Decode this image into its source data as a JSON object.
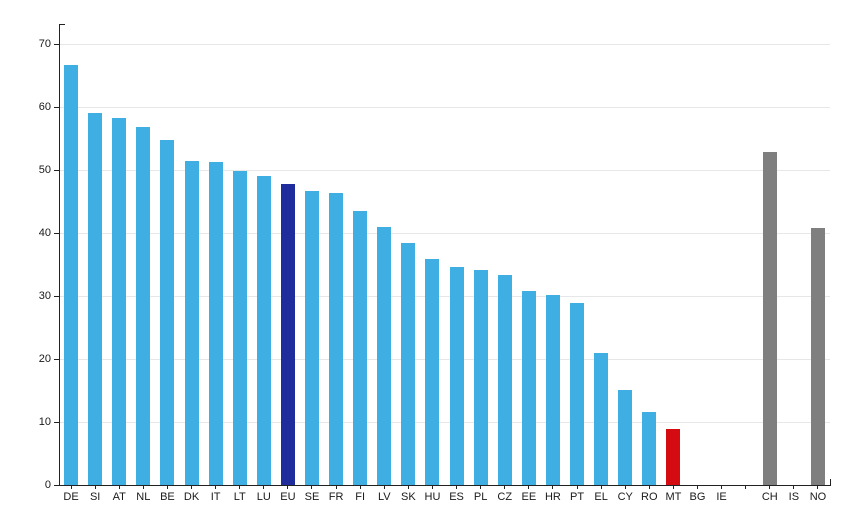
{
  "chart_data": {
    "type": "bar",
    "title": "",
    "xlabel": "",
    "ylabel": "",
    "categories": [
      "DE",
      "SI",
      "AT",
      "NL",
      "BE",
      "DK",
      "IT",
      "LT",
      "LU",
      "EU",
      "SE",
      "FR",
      "FI",
      "LV",
      "SK",
      "HU",
      "ES",
      "PL",
      "CZ",
      "EE",
      "HR",
      "PT",
      "EL",
      "CY",
      "RO",
      "MT",
      "BG",
      "IE",
      "",
      "CH",
      "IS",
      "NO"
    ],
    "values": [
      66.7,
      59.1,
      58.2,
      56.9,
      54.7,
      51.5,
      51.3,
      49.8,
      49.0,
      47.8,
      46.6,
      46.3,
      43.5,
      41.0,
      38.4,
      35.9,
      34.6,
      34.2,
      33.4,
      30.8,
      30.2,
      28.9,
      21.0,
      15.1,
      11.6,
      8.9,
      null,
      null,
      null,
      52.9,
      null,
      40.8
    ],
    "bar_color_roles": [
      "default",
      "default",
      "default",
      "default",
      "default",
      "default",
      "default",
      "default",
      "default",
      "eu_aggregate",
      "default",
      "default",
      "default",
      "default",
      "default",
      "default",
      "default",
      "default",
      "default",
      "default",
      "default",
      "default",
      "default",
      "default",
      "default",
      "highlight",
      "default",
      "default",
      "none",
      "non_eu",
      "non_eu",
      "non_eu"
    ],
    "palette": {
      "default": "#3EAEE3",
      "eu_aggregate": "#1E2D9B",
      "highlight": "#D40B10",
      "non_eu": "#7F7F7F"
    },
    "colors": {
      "grid": "#E7E7E7",
      "axis": "#222222",
      "tick_label": "#1A1A1A"
    },
    "yticks": [
      0,
      10,
      20,
      30,
      40,
      50,
      60,
      70
    ],
    "ylim": [
      0,
      73
    ],
    "grid": "horizontal",
    "legend": "none"
  }
}
